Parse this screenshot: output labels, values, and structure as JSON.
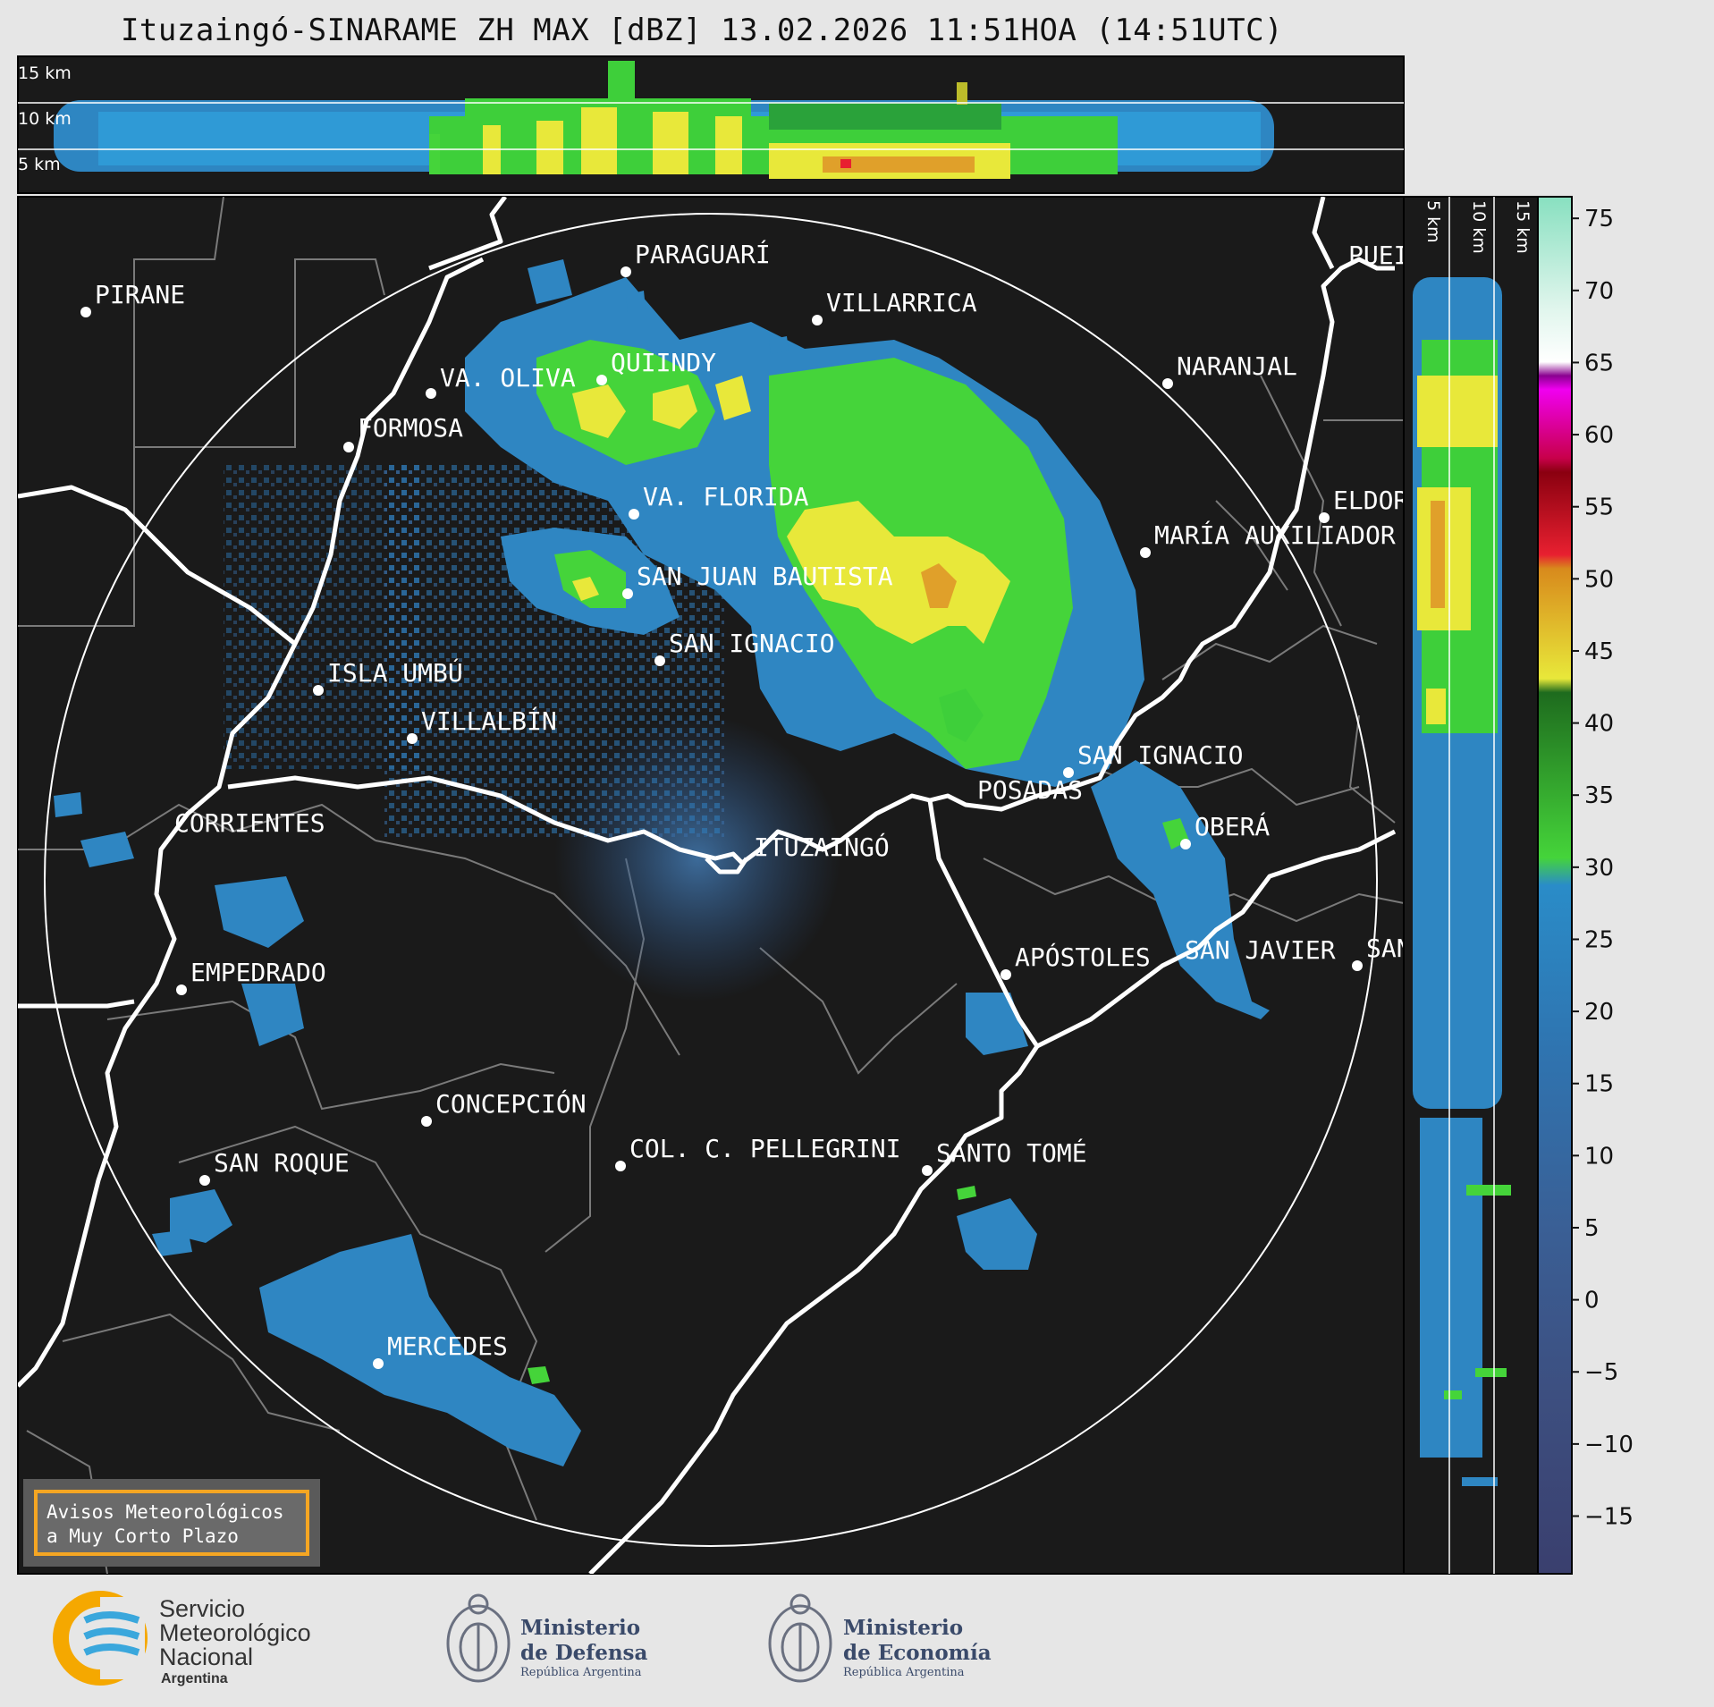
{
  "title": "Ituzaingó-SINARAME ZH MAX [dBZ] 13.02.2026 11:51HOA (14:51UTC)",
  "top_panel": {
    "height_labels": [
      "15 km",
      "10 km",
      "5 km"
    ]
  },
  "side_panel": {
    "height_labels": [
      "5 km",
      "10 km",
      "15 km"
    ]
  },
  "radar_site": "ITUZAINGÓ",
  "places": [
    "PARAGUARÍ",
    "VILLARRICA",
    "PIRANE",
    "NARANJAL",
    "VA. OLIVA",
    "QUIINDY",
    "FORMOSA",
    "VA. FLORIDA",
    "ELDOR",
    "MARÍA AUXILIADOR",
    "SAN JUAN BAUTISTA",
    "SAN IGNACIO",
    "ISLA UMBÚ",
    "VILLALBÍN",
    "SAN IGNACIO",
    "POSADAS",
    "CORRIENTES",
    "OBERÁ",
    "ITUZAINGÓ",
    "APÓSTOLES",
    "SAN JAVIER",
    "SAN",
    "EMPEDRADO",
    "CONCEPCIÓN",
    "COL. C. PELLEGRINI",
    "SANTO TOMÉ",
    "SAN ROQUE",
    "MERCEDES",
    "PUEI"
  ],
  "colorbar": {
    "unit": "dBZ",
    "ticks": [
      "75",
      "70",
      "65",
      "60",
      "55",
      "50",
      "45",
      "40",
      "35",
      "30",
      "25",
      "20",
      "15",
      "10",
      "5",
      "0",
      "−5",
      "−10",
      "−15"
    ],
    "min": -19,
    "max": 76.5
  },
  "warning_box": {
    "line1": "Avisos Meteorológicos",
    "line2": "a Muy Corto Plazo"
  },
  "logos": {
    "smn": {
      "line1": "Servicio",
      "line2": "Meteorológico",
      "line3": "Nacional",
      "line4": "Argentina"
    },
    "defensa": {
      "line1": "Ministerio",
      "line2": "de Defensa",
      "line3": "República Argentina"
    },
    "economia": {
      "line1": "Ministerio",
      "line2": "de Economía",
      "line3": "República Argentina"
    }
  },
  "colors": {
    "map_background": "#1a1a1a",
    "range_ring": "#ffffff",
    "border_lines": "#ffffff",
    "admin_lines": "#7a7a7a",
    "warning_box_border": "#f5a623",
    "smn_orange": "#f5a800",
    "smn_blue": "#3aa7dc"
  }
}
